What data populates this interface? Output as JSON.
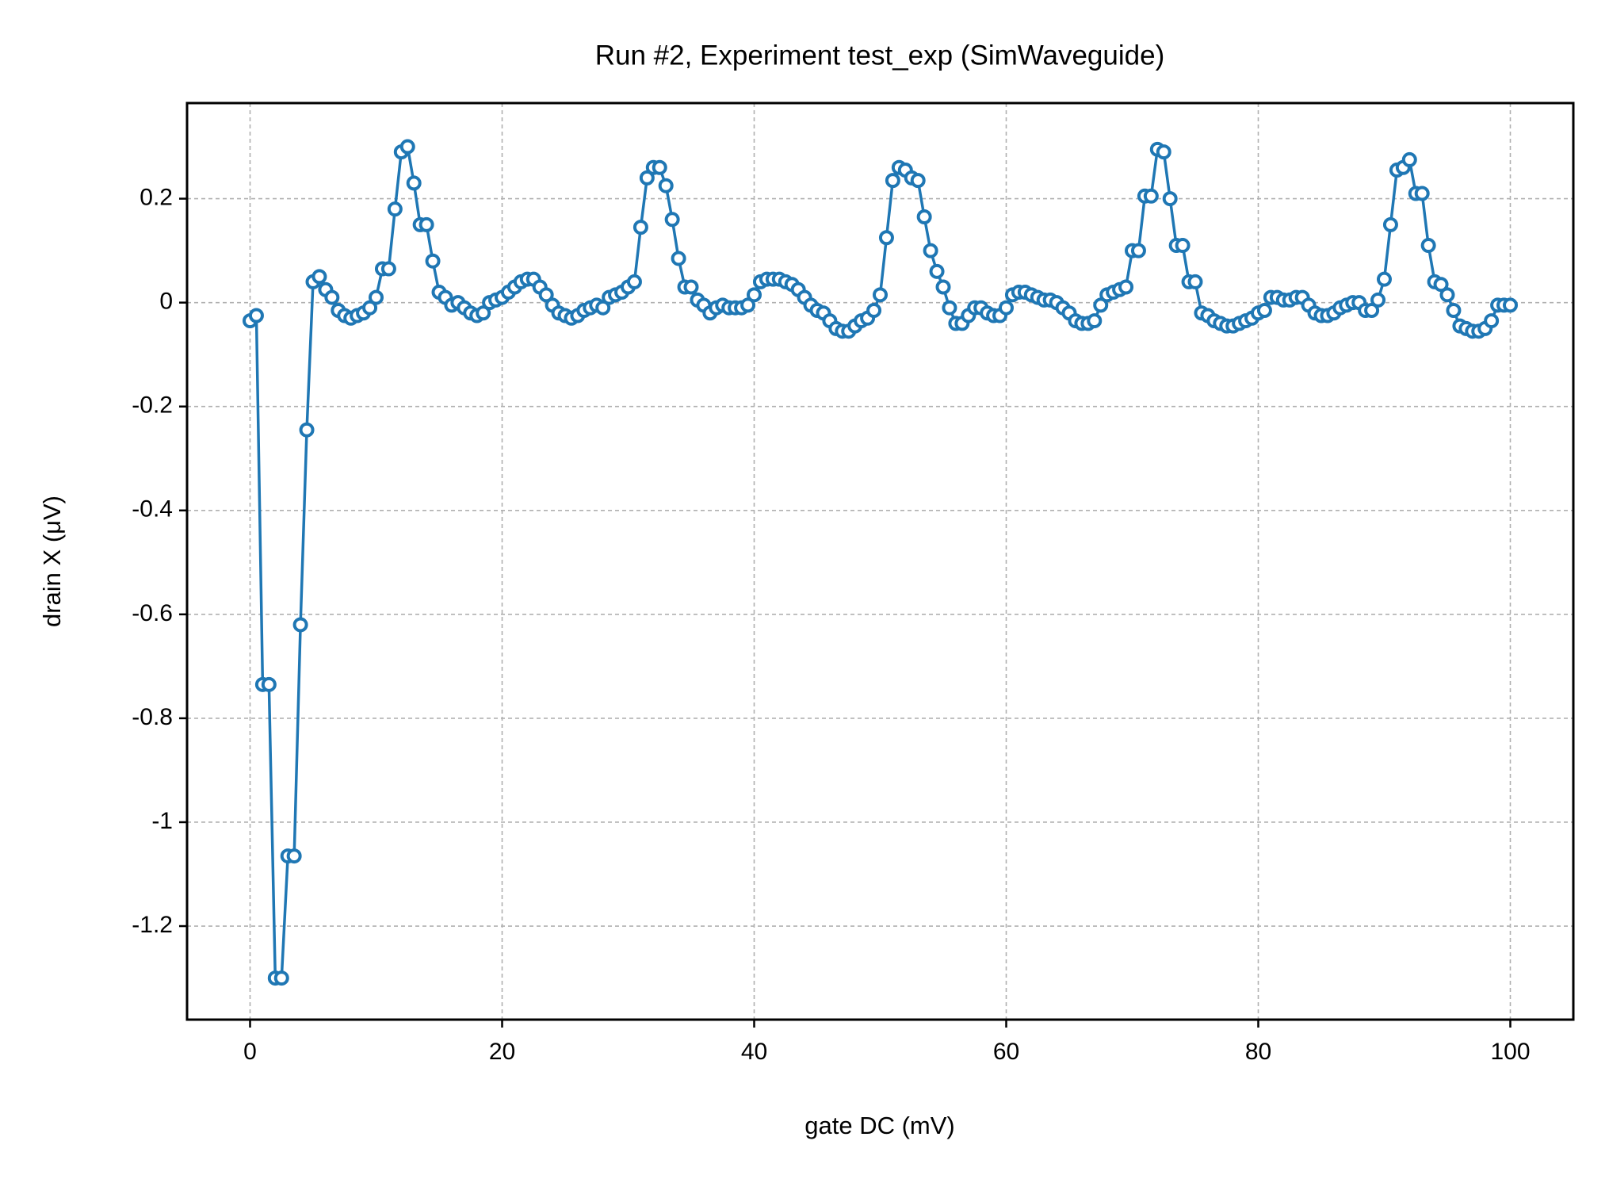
{
  "chart_data": {
    "type": "line",
    "title": "Run #2, Experiment test_exp (SimWaveguide)",
    "x_label": "gate DC (mV)",
    "y_label": "drain X (μV)",
    "x": [
      0,
      0.5,
      1,
      1.5,
      2,
      2.5,
      3,
      3.5,
      4,
      4.5,
      5,
      5.5,
      6,
      6.5,
      7,
      7.5,
      8,
      8.5,
      9,
      9.5,
      10,
      10.5,
      11,
      11.5,
      12,
      12.5,
      13,
      13.5,
      14,
      14.5,
      15,
      15.5,
      16,
      16.5,
      17,
      17.5,
      18,
      18.5,
      19,
      19.5,
      20,
      20.5,
      21,
      21.5,
      22,
      22.5,
      23,
      23.5,
      24,
      24.5,
      25,
      25.5,
      26,
      26.5,
      27,
      27.5,
      28,
      28.5,
      29,
      29.5,
      30,
      30.5,
      31,
      31.5,
      32,
      32.5,
      33,
      33.5,
      34,
      34.5,
      35,
      35.5,
      36,
      36.5,
      37,
      37.5,
      38,
      38.5,
      39,
      39.5,
      40,
      40.5,
      41,
      41.5,
      42,
      42.5,
      43,
      43.5,
      44,
      44.5,
      45,
      45.5,
      46,
      46.5,
      47,
      47.5,
      48,
      48.5,
      49,
      49.5,
      50,
      50.5,
      51,
      51.5,
      52,
      52.5,
      53,
      53.5,
      54,
      54.5,
      55,
      55.5,
      56,
      56.5,
      57,
      57.5,
      58,
      58.5,
      59,
      59.5,
      60,
      60.5,
      61,
      61.5,
      62,
      62.5,
      63,
      63.5,
      64,
      64.5,
      65,
      65.5,
      66,
      66.5,
      67,
      67.5,
      68,
      68.5,
      69,
      69.5,
      70,
      70.5,
      71,
      71.5,
      72,
      72.5,
      73,
      73.5,
      74,
      74.5,
      75,
      75.5,
      76,
      76.5,
      77,
      77.5,
      78,
      78.5,
      79,
      79.5,
      80,
      80.5,
      81,
      81.5,
      82,
      82.5,
      83,
      83.5,
      84,
      84.5,
      85,
      85.5,
      86,
      86.5,
      87,
      87.5,
      88,
      88.5,
      89,
      89.5,
      90,
      90.5,
      91,
      91.5,
      92,
      92.5,
      93,
      93.5,
      94,
      94.5,
      95,
      95.5,
      96,
      96.5,
      97,
      97.5,
      98,
      98.5,
      99,
      99.5,
      100
    ],
    "series": [
      {
        "color": "#1f77b4",
        "values": [
          -0.035,
          -0.025,
          -0.735,
          -0.735,
          -1.3,
          -1.3,
          -1.065,
          -1.065,
          -0.62,
          -0.245,
          0.04,
          0.05,
          0.025,
          0.01,
          -0.015,
          -0.025,
          -0.03,
          -0.025,
          -0.02,
          -0.01,
          0.01,
          0.065,
          0.065,
          0.18,
          0.29,
          0.3,
          0.23,
          0.15,
          0.15,
          0.08,
          0.02,
          0.01,
          -0.005,
          0,
          -0.01,
          -0.02,
          -0.025,
          -0.02,
          0,
          0.005,
          0.01,
          0.02,
          0.03,
          0.04,
          0.045,
          0.045,
          0.03,
          0.015,
          -0.005,
          -0.02,
          -0.025,
          -0.03,
          -0.025,
          -0.015,
          -0.01,
          -0.005,
          -0.01,
          0.01,
          0.015,
          0.02,
          0.03,
          0.04,
          0.145,
          0.24,
          0.26,
          0.26,
          0.225,
          0.16,
          0.085,
          0.03,
          0.03,
          0.005,
          -0.005,
          -0.02,
          -0.01,
          -0.005,
          -0.01,
          -0.01,
          -0.01,
          -0.005,
          0.015,
          0.04,
          0.045,
          0.045,
          0.045,
          0.04,
          0.035,
          0.025,
          0.01,
          -0.005,
          -0.015,
          -0.02,
          -0.035,
          -0.05,
          -0.055,
          -0.055,
          -0.045,
          -0.035,
          -0.03,
          -0.015,
          0.015,
          0.125,
          0.235,
          0.26,
          0.255,
          0.24,
          0.235,
          0.165,
          0.1,
          0.06,
          0.03,
          -0.01,
          -0.04,
          -0.04,
          -0.025,
          -0.01,
          -0.01,
          -0.02,
          -0.025,
          -0.025,
          -0.01,
          0.015,
          0.02,
          0.02,
          0.015,
          0.01,
          0.005,
          0.005,
          0,
          -0.01,
          -0.02,
          -0.035,
          -0.04,
          -0.04,
          -0.035,
          -0.005,
          0.015,
          0.02,
          0.025,
          0.03,
          0.1,
          0.1,
          0.205,
          0.205,
          0.295,
          0.29,
          0.2,
          0.11,
          0.11,
          0.04,
          0.04,
          -0.02,
          -0.025,
          -0.035,
          -0.04,
          -0.045,
          -0.045,
          -0.04,
          -0.035,
          -0.03,
          -0.02,
          -0.015,
          0.01,
          0.01,
          0.005,
          0.005,
          0.01,
          0.01,
          -0.005,
          -0.02,
          -0.025,
          -0.025,
          -0.02,
          -0.01,
          -0.005,
          0,
          0,
          -0.015,
          -0.015,
          0.005,
          0.045,
          0.15,
          0.255,
          0.26,
          0.275,
          0.21,
          0.21,
          0.11,
          0.04,
          0.035,
          0.015,
          -0.015,
          -0.045,
          -0.05,
          -0.055,
          -0.055,
          -0.05,
          -0.035,
          -0.005,
          -0.005,
          -0.005
        ]
      }
    ],
    "xlim": [
      -5,
      105
    ],
    "ylim": [
      -1.38,
      0.384
    ],
    "xticks": [
      0,
      20,
      40,
      60,
      80,
      100
    ],
    "yticks": [
      0.2,
      0,
      -0.2,
      -0.4,
      -0.6,
      -0.8,
      -1,
      -1.2
    ],
    "grid": true,
    "markers": true
  }
}
